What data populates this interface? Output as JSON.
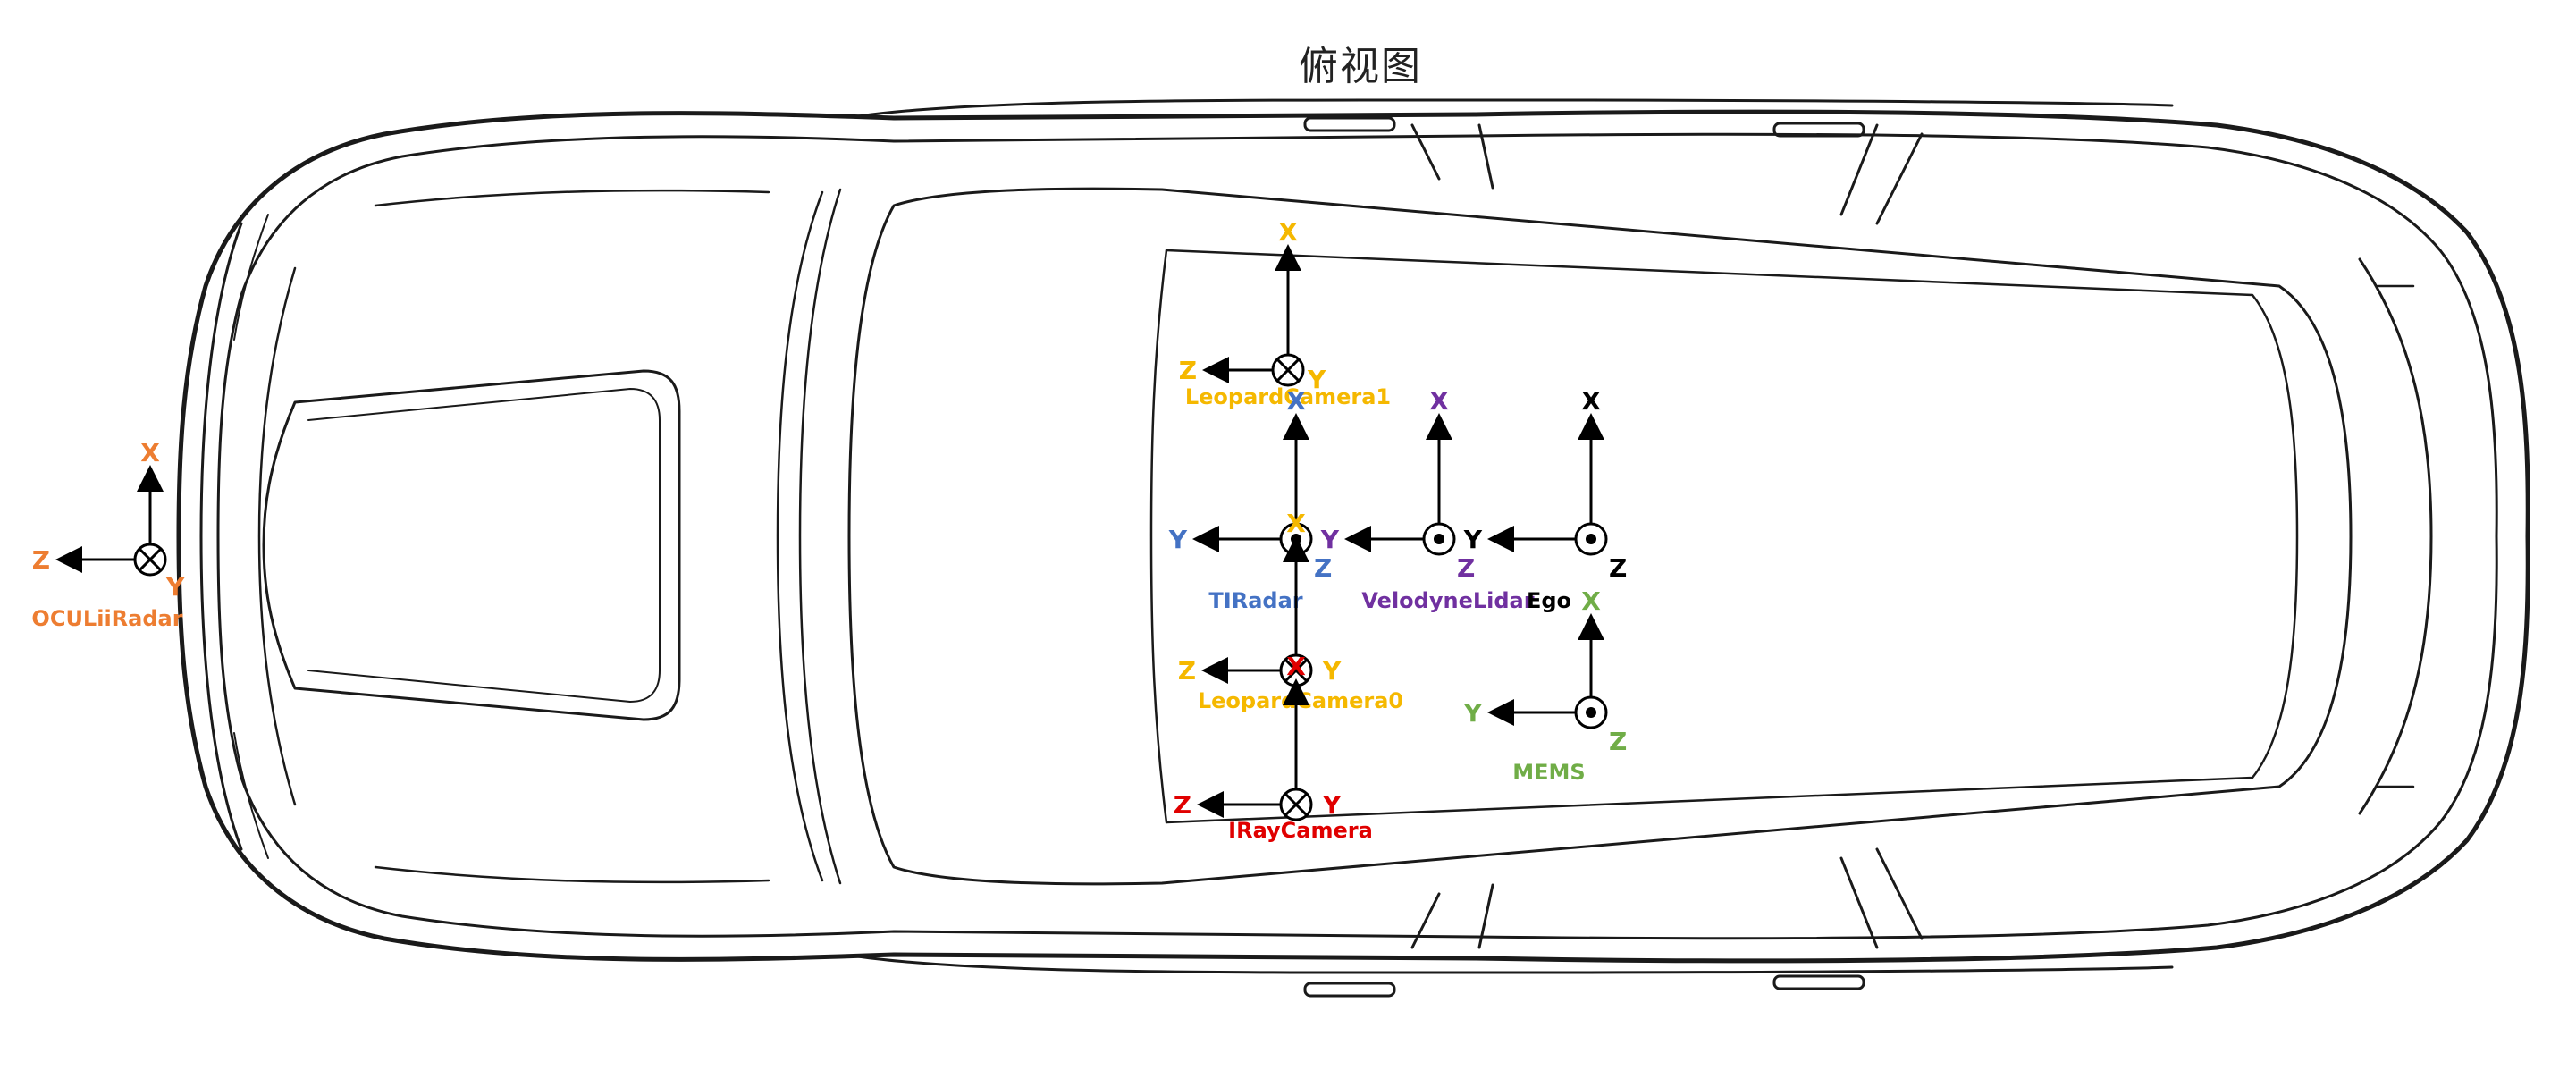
{
  "title": "俯视图",
  "frames": [
    {
      "id": "leopard1",
      "label": "LeopardCamera1",
      "color": "#f5b800",
      "a1": "X",
      "a2": "Z",
      "a3": "Y",
      "center": "into"
    },
    {
      "id": "tiradar",
      "label": "TIRadar",
      "color": "#4472c4",
      "a1": "X",
      "a2": "Y",
      "a3": "Z",
      "center": "out"
    },
    {
      "id": "velodyne",
      "label": "VelodyneLidar",
      "color": "#7030a0",
      "a1": "X",
      "a2": "Y",
      "a3": "Z",
      "center": "out"
    },
    {
      "id": "ego",
      "label": "Ego",
      "color": "#000000",
      "a1": "X",
      "a2": "Y",
      "a3": "Z",
      "center": "out"
    },
    {
      "id": "oculii",
      "label": "OCULiiRadar",
      "color": "#ed7d31",
      "a1": "X",
      "a2": "Z",
      "a3": "Y",
      "center": "into"
    },
    {
      "id": "leopard0",
      "label": "LeopardCamera0",
      "color": "#f5b800",
      "a1": "X",
      "a2": "Z",
      "a3": "Y",
      "center": "into"
    },
    {
      "id": "mems",
      "label": "MEMS",
      "color": "#70ad47",
      "a1": "X",
      "a2": "Y",
      "a3": "Z",
      "center": "out"
    },
    {
      "id": "iray",
      "label": "IRayCamera",
      "color": "#e00000",
      "a1": "X",
      "a2": "Z",
      "a3": "Y",
      "center": "into"
    }
  ]
}
